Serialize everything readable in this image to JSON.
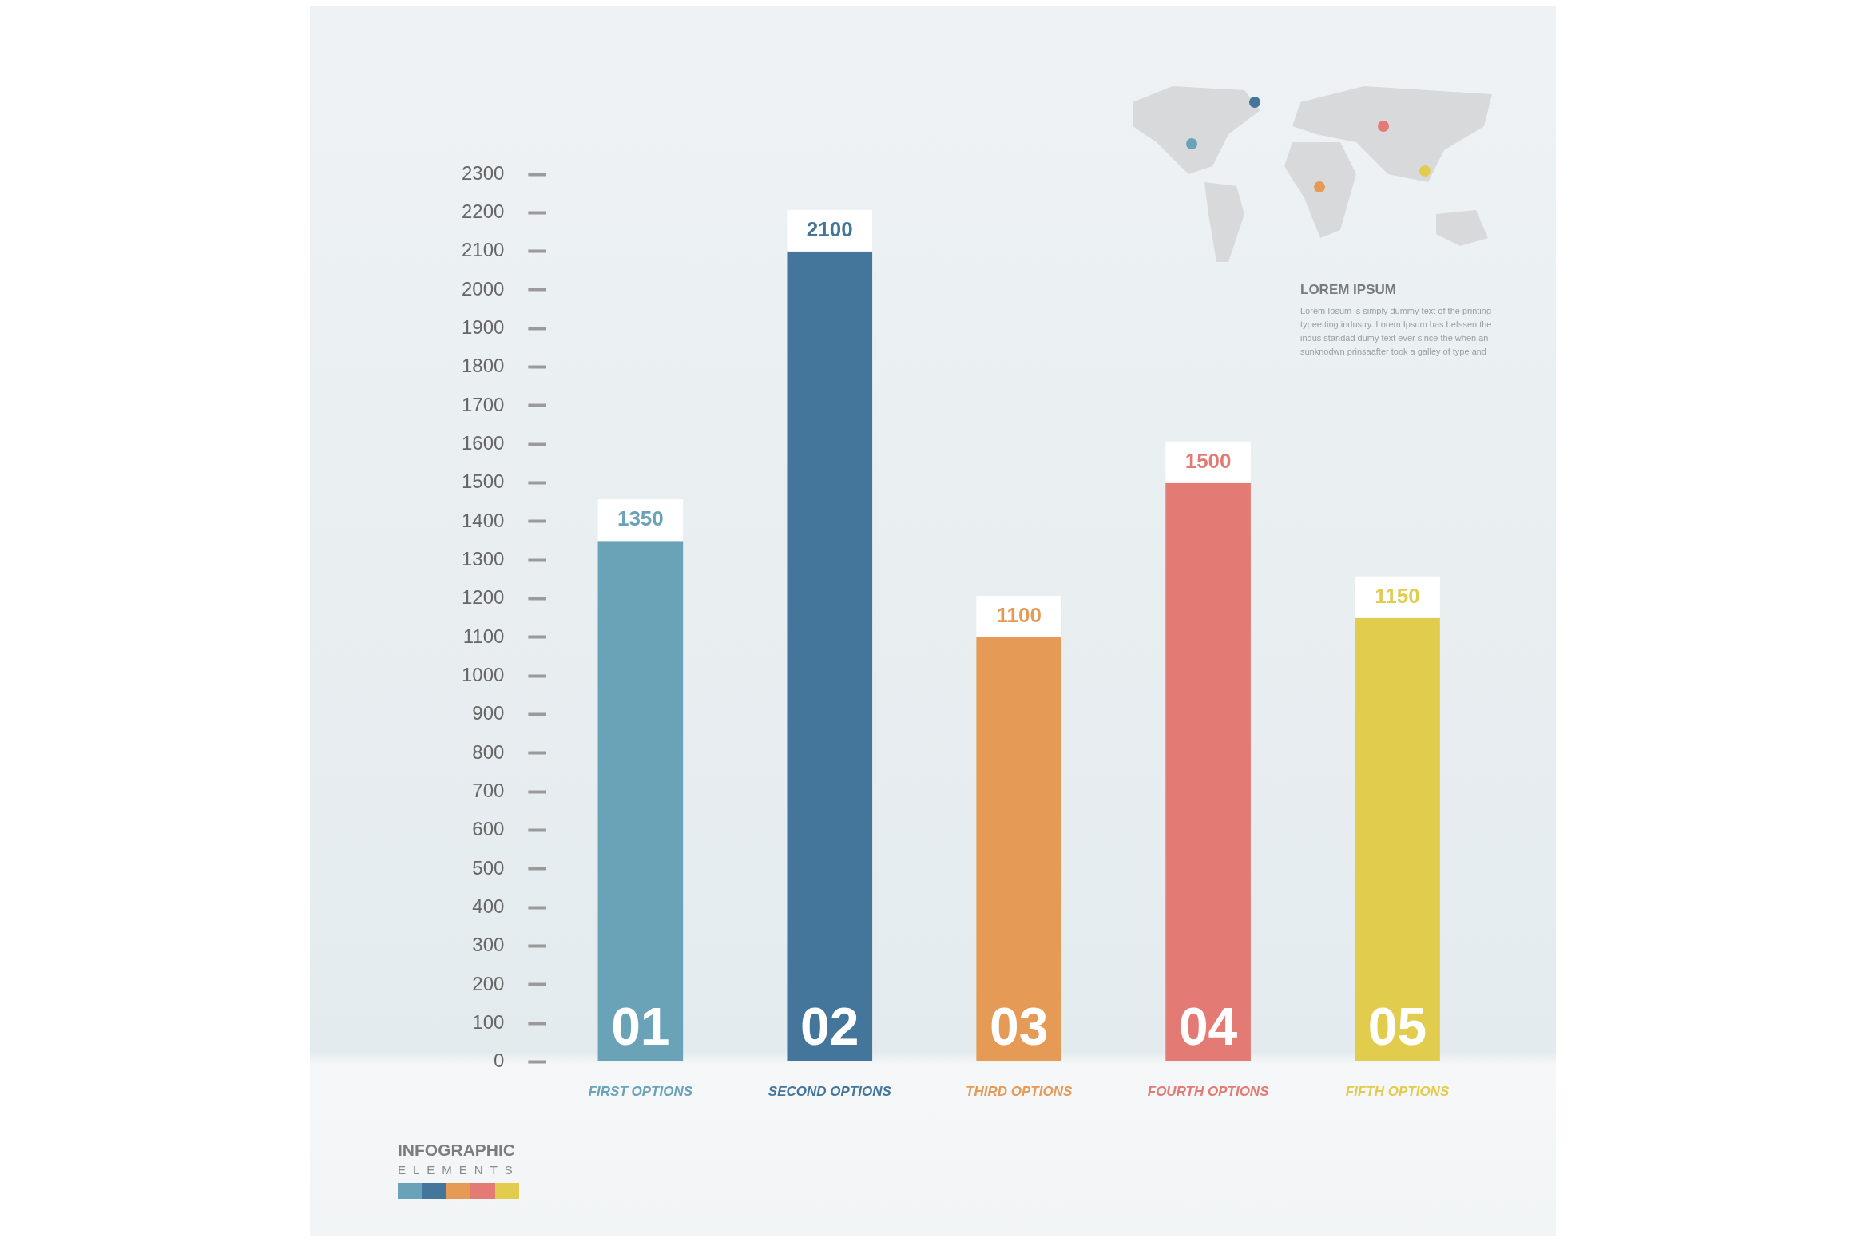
{
  "chart_data": {
    "type": "bar",
    "title": "INFOGRAPHIC",
    "subtitle": "ELEMENTS",
    "categories": [
      "FIRST OPTIONS",
      "SECOND OPTIONS",
      "THIRD OPTIONS",
      "FOURTH OPTIONS",
      "FIFTH OPTIONS"
    ],
    "values": [
      1350,
      2100,
      1100,
      1500,
      1150
    ],
    "colors": [
      "#6aa3b8",
      "#44769c",
      "#e59a55",
      "#e37b74",
      "#e2cc4d"
    ],
    "data_labels": true,
    "ylim": [
      0,
      2300
    ],
    "yticks": [
      0,
      100,
      200,
      300,
      400,
      500,
      600,
      700,
      800,
      900,
      1000,
      1100,
      1200,
      1300,
      1400,
      1500,
      1600,
      1700,
      1800,
      1900,
      2000,
      2100,
      2200,
      2300
    ],
    "grid": false,
    "legend": false,
    "annotations": [
      {
        "text": "01",
        "x": "FIRST OPTIONS",
        "y": 0
      },
      {
        "text": "02",
        "x": "SECOND OPTIONS",
        "y": 0
      },
      {
        "text": "03",
        "x": "THIRD OPTIONS",
        "y": 0
      },
      {
        "text": "04",
        "x": "FOURTH OPTIONS",
        "y": 0
      },
      {
        "text": "05",
        "x": "FIFTH OPTIONS",
        "y": 0
      },
      "LOREM IPSUM",
      "Lorem Ipsum is simply dummy text of the printing typeetting industry. Lorem Ipsum has befssen the indus standad dumy text ever since the when an sunknodwn prinsaafter took a galley of type and"
    ]
  }
}
